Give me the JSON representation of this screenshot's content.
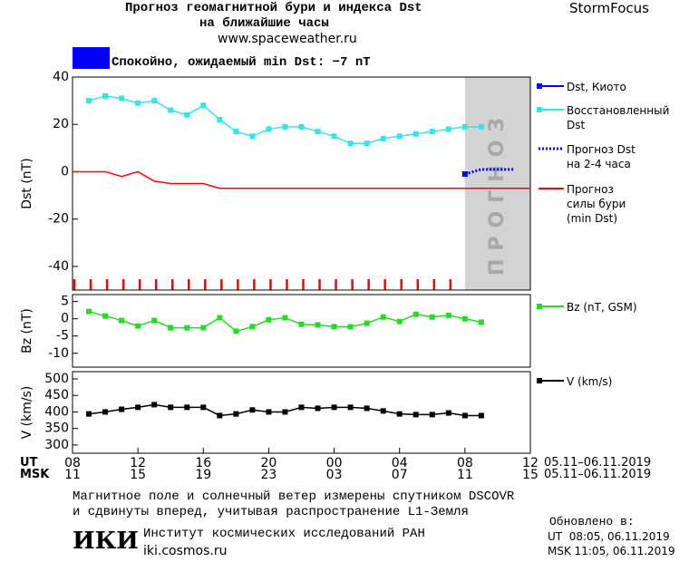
{
  "header": {
    "title_line1": "Прогноз геомагнитной бури и индекса Dst",
    "title_line2": "на ближайшие часы",
    "url": "www.spaceweather.ru",
    "brand": "StormFocus"
  },
  "status": {
    "text": "Спокойно, ожидаемый min Dst: −7 nT",
    "color": "#0000ff"
  },
  "xaxis": {
    "xlim": [
      0,
      28
    ],
    "ut_label": "UT",
    "msk_label": "MSK",
    "range_label": "05.11–06.11.2019",
    "xticks": [
      {
        "value": 0,
        "label": "08"
      },
      {
        "value": 4,
        "label": "12"
      },
      {
        "value": 8,
        "label": "16"
      },
      {
        "value": 12,
        "label": "20"
      },
      {
        "value": 16,
        "label": "00"
      },
      {
        "value": 20,
        "label": "04"
      },
      {
        "value": 24,
        "label": "08"
      },
      {
        "value": 28,
        "label": "12"
      }
    ],
    "msk_ticks": [
      {
        "value": 0,
        "label": "11"
      },
      {
        "value": 4,
        "label": "15"
      },
      {
        "value": 8,
        "label": "19"
      },
      {
        "value": 12,
        "label": "23"
      },
      {
        "value": 16,
        "label": "03"
      },
      {
        "value": 20,
        "label": "07"
      },
      {
        "value": 24,
        "label": "11"
      },
      {
        "value": 28,
        "label": "15"
      }
    ]
  },
  "chart_data": [
    {
      "type": "line",
      "ylabel": "Dst (nT)",
      "xlim": [
        0,
        28
      ],
      "ylim": [
        -50,
        40
      ],
      "yticks": [
        -40,
        -20,
        0,
        20,
        40
      ],
      "forecast_band": {
        "xlim": [
          24,
          28
        ],
        "label": "ПРОГНОЗ",
        "color": "#d3d3d3"
      },
      "hour_marks": {
        "color": "#ff0000",
        "x": [
          0,
          1,
          2,
          3,
          4,
          5,
          6,
          7,
          8,
          9,
          10,
          11,
          12,
          13,
          14,
          15,
          16,
          17,
          18,
          19,
          20,
          21,
          22,
          23
        ]
      },
      "series": [
        {
          "name": "Dst, Киото",
          "color": "#0000ff",
          "marker": "square",
          "style": "solid",
          "x": [
            24
          ],
          "values": [
            -1
          ]
        },
        {
          "name": "Восстановленный\nDst",
          "color": "#33e6e6",
          "marker": "square",
          "style": "solid",
          "x": [
            1,
            2,
            3,
            4,
            5,
            6,
            7,
            8,
            9,
            10,
            11,
            12,
            13,
            14,
            15,
            16,
            17,
            18,
            19,
            20,
            21,
            22,
            23,
            24,
            25
          ],
          "values": [
            30,
            32,
            31,
            29,
            30,
            26,
            24,
            28,
            22,
            17,
            15,
            18,
            19,
            19,
            17,
            15,
            12,
            12,
            14,
            15,
            16,
            17,
            18,
            19,
            19
          ]
        },
        {
          "name": "Прогноз Dst\nна 2-4 часа",
          "color": "#0000ff",
          "marker": "none",
          "style": "dotted",
          "x": [
            24,
            25,
            26,
            27
          ],
          "values": [
            -1,
            1,
            1,
            1
          ]
        },
        {
          "name": "Прогноз\nсилы бури\n(min Dst)",
          "color": "#ff0000",
          "marker": "none",
          "style": "solid",
          "x": [
            0,
            2,
            3,
            4,
            5,
            6,
            8,
            9,
            28
          ],
          "values": [
            0,
            0,
            -2,
            0,
            -4,
            -5,
            -5,
            -7,
            -7
          ]
        }
      ]
    },
    {
      "type": "line",
      "ylabel": "Bz (nT)",
      "xlim": [
        0,
        28
      ],
      "ylim": [
        -14,
        7
      ],
      "yticks": [
        -10,
        -5,
        0,
        5
      ],
      "series": [
        {
          "name": "Bz (nT, GSM)",
          "color": "#22dd22",
          "marker": "square",
          "style": "solid",
          "x": [
            1,
            2,
            3,
            4,
            5,
            6,
            7,
            8,
            9,
            10,
            11,
            12,
            13,
            14,
            15,
            16,
            17,
            18,
            19,
            20,
            21,
            22,
            23,
            24,
            25
          ],
          "values": [
            2.1,
            0.8,
            -0.5,
            -2.1,
            -0.5,
            -2.6,
            -2.6,
            -2.6,
            0.3,
            -3.6,
            -2.3,
            -0.3,
            0.3,
            -1.6,
            -1.8,
            -2.3,
            -2.3,
            -1.3,
            0.5,
            -0.8,
            1.3,
            0.5,
            1,
            0,
            -1
          ]
        }
      ]
    },
    {
      "type": "line",
      "ylabel": "V (km/s)",
      "xlim": [
        0,
        28
      ],
      "ylim": [
        275,
        522
      ],
      "yticks": [
        300,
        350,
        400,
        450,
        500
      ],
      "series": [
        {
          "name": "V (km/s)",
          "color": "#000000",
          "marker": "square",
          "style": "solid",
          "x": [
            1,
            2,
            3,
            4,
            5,
            6,
            7,
            8,
            9,
            10,
            11,
            12,
            13,
            14,
            15,
            16,
            17,
            18,
            19,
            20,
            21,
            22,
            23,
            24,
            25
          ],
          "values": [
            394,
            400,
            408,
            414,
            422,
            414,
            414,
            414,
            389,
            394,
            406,
            400,
            400,
            414,
            411,
            414,
            414,
            411,
            403,
            394,
            392,
            392,
            397,
            389,
            389
          ]
        }
      ]
    }
  ],
  "footer": {
    "note_line1": "Магнитное поле и солнечный ветер измерены спутником DSCOVR",
    "note_line2": "и сдвинуты вперед, учитывая распространение L1-Земля",
    "updated_label": "Обновлено в:",
    "updated_ut": "UT  08:05, 06.11.2019",
    "updated_msk": "MSK 11:05, 06.11.2019",
    "logo": "ИКИ",
    "institute": "Институт космических исследований РАН",
    "site": "iki.cosmos.ru"
  }
}
